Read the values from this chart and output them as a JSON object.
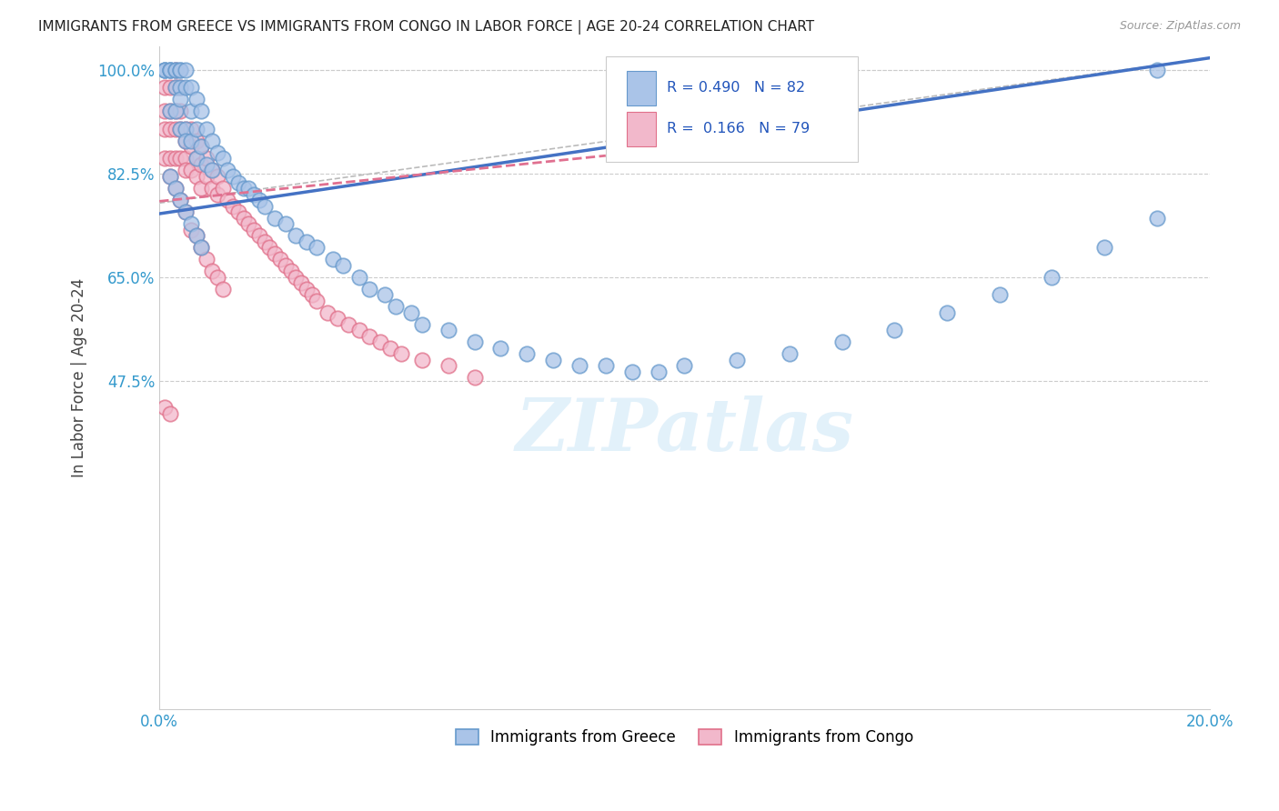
{
  "title": "IMMIGRANTS FROM GREECE VS IMMIGRANTS FROM CONGO IN LABOR FORCE | AGE 20-24 CORRELATION CHART",
  "source": "Source: ZipAtlas.com",
  "ylabel": "In Labor Force | Age 20-24",
  "xmin": 0.0,
  "xmax": 0.2,
  "ymin": -0.08,
  "ymax": 1.04,
  "yticks": [
    0.475,
    0.65,
    0.825,
    1.0
  ],
  "ytick_labels": [
    "47.5%",
    "65.0%",
    "82.5%",
    "100.0%"
  ],
  "xticks": [
    0.0,
    0.025,
    0.05,
    0.075,
    0.1,
    0.125,
    0.15,
    0.175,
    0.2
  ],
  "xtick_labels": [
    "0.0%",
    "",
    "",
    "",
    "",
    "",
    "",
    "",
    "20.0%"
  ],
  "greece_color": "#aac4e8",
  "congo_color": "#f2b8cb",
  "greece_edge_color": "#6699cc",
  "congo_edge_color": "#e0708a",
  "greece_R": 0.49,
  "greece_N": 82,
  "congo_R": 0.166,
  "congo_N": 79,
  "legend_label_greece": "Immigrants from Greece",
  "legend_label_congo": "Immigrants from Congo",
  "watermark": "ZIPatlas",
  "background_color": "#ffffff",
  "grid_color": "#cccccc",
  "blue_line_color": "#4472c4",
  "pink_line_color": "#e07090",
  "ref_line_color": "#bbbbbb",
  "blue_line_x": [
    0.0,
    0.2
  ],
  "blue_line_y": [
    0.757,
    1.02
  ],
  "pink_line_x": [
    0.0,
    0.085
  ],
  "pink_line_y": [
    0.778,
    0.855
  ],
  "ref_line_x": [
    0.0,
    0.2
  ],
  "ref_line_y": [
    0.775,
    1.02
  ],
  "greece_x": [
    0.001,
    0.001,
    0.001,
    0.002,
    0.002,
    0.002,
    0.002,
    0.003,
    0.003,
    0.003,
    0.003,
    0.004,
    0.004,
    0.004,
    0.004,
    0.004,
    0.005,
    0.005,
    0.005,
    0.005,
    0.006,
    0.006,
    0.006,
    0.007,
    0.007,
    0.007,
    0.008,
    0.008,
    0.009,
    0.009,
    0.01,
    0.01,
    0.011,
    0.012,
    0.013,
    0.014,
    0.015,
    0.016,
    0.017,
    0.018,
    0.019,
    0.02,
    0.022,
    0.024,
    0.026,
    0.028,
    0.03,
    0.033,
    0.035,
    0.038,
    0.04,
    0.043,
    0.045,
    0.048,
    0.05,
    0.055,
    0.06,
    0.065,
    0.07,
    0.075,
    0.08,
    0.085,
    0.09,
    0.095,
    0.1,
    0.11,
    0.12,
    0.13,
    0.14,
    0.15,
    0.16,
    0.17,
    0.18,
    0.19,
    0.002,
    0.003,
    0.004,
    0.005,
    0.006,
    0.007,
    0.008,
    0.19
  ],
  "greece_y": [
    1.0,
    1.0,
    1.0,
    1.0,
    1.0,
    1.0,
    0.93,
    1.0,
    1.0,
    0.97,
    0.93,
    1.0,
    1.0,
    0.97,
    0.95,
    0.9,
    1.0,
    0.97,
    0.9,
    0.88,
    0.97,
    0.93,
    0.88,
    0.95,
    0.9,
    0.85,
    0.93,
    0.87,
    0.9,
    0.84,
    0.88,
    0.83,
    0.86,
    0.85,
    0.83,
    0.82,
    0.81,
    0.8,
    0.8,
    0.79,
    0.78,
    0.77,
    0.75,
    0.74,
    0.72,
    0.71,
    0.7,
    0.68,
    0.67,
    0.65,
    0.63,
    0.62,
    0.6,
    0.59,
    0.57,
    0.56,
    0.54,
    0.53,
    0.52,
    0.51,
    0.5,
    0.5,
    0.49,
    0.49,
    0.5,
    0.51,
    0.52,
    0.54,
    0.56,
    0.59,
    0.62,
    0.65,
    0.7,
    0.75,
    0.82,
    0.8,
    0.78,
    0.76,
    0.74,
    0.72,
    0.7,
    1.0
  ],
  "congo_x": [
    0.001,
    0.001,
    0.001,
    0.001,
    0.002,
    0.002,
    0.002,
    0.002,
    0.003,
    0.003,
    0.003,
    0.003,
    0.004,
    0.004,
    0.004,
    0.004,
    0.005,
    0.005,
    0.005,
    0.005,
    0.006,
    0.006,
    0.006,
    0.007,
    0.007,
    0.007,
    0.008,
    0.008,
    0.008,
    0.009,
    0.009,
    0.01,
    0.01,
    0.011,
    0.011,
    0.012,
    0.013,
    0.014,
    0.015,
    0.016,
    0.017,
    0.018,
    0.019,
    0.02,
    0.021,
    0.022,
    0.023,
    0.024,
    0.025,
    0.026,
    0.027,
    0.028,
    0.029,
    0.03,
    0.032,
    0.034,
    0.036,
    0.038,
    0.04,
    0.042,
    0.044,
    0.046,
    0.05,
    0.055,
    0.06,
    0.002,
    0.003,
    0.004,
    0.005,
    0.006,
    0.007,
    0.008,
    0.009,
    0.01,
    0.011,
    0.012,
    0.001,
    0.002,
    0.003
  ],
  "congo_y": [
    0.97,
    0.93,
    0.9,
    0.85,
    0.97,
    0.93,
    0.9,
    0.85,
    0.97,
    0.93,
    0.9,
    0.85,
    0.97,
    0.93,
    0.9,
    0.85,
    0.9,
    0.88,
    0.85,
    0.83,
    0.9,
    0.87,
    0.83,
    0.88,
    0.85,
    0.82,
    0.87,
    0.84,
    0.8,
    0.85,
    0.82,
    0.83,
    0.8,
    0.82,
    0.79,
    0.8,
    0.78,
    0.77,
    0.76,
    0.75,
    0.74,
    0.73,
    0.72,
    0.71,
    0.7,
    0.69,
    0.68,
    0.67,
    0.66,
    0.65,
    0.64,
    0.63,
    0.62,
    0.61,
    0.59,
    0.58,
    0.57,
    0.56,
    0.55,
    0.54,
    0.53,
    0.52,
    0.51,
    0.5,
    0.48,
    0.82,
    0.8,
    0.78,
    0.76,
    0.73,
    0.72,
    0.7,
    0.68,
    0.66,
    0.65,
    0.63,
    0.43,
    0.42,
    1.0
  ]
}
